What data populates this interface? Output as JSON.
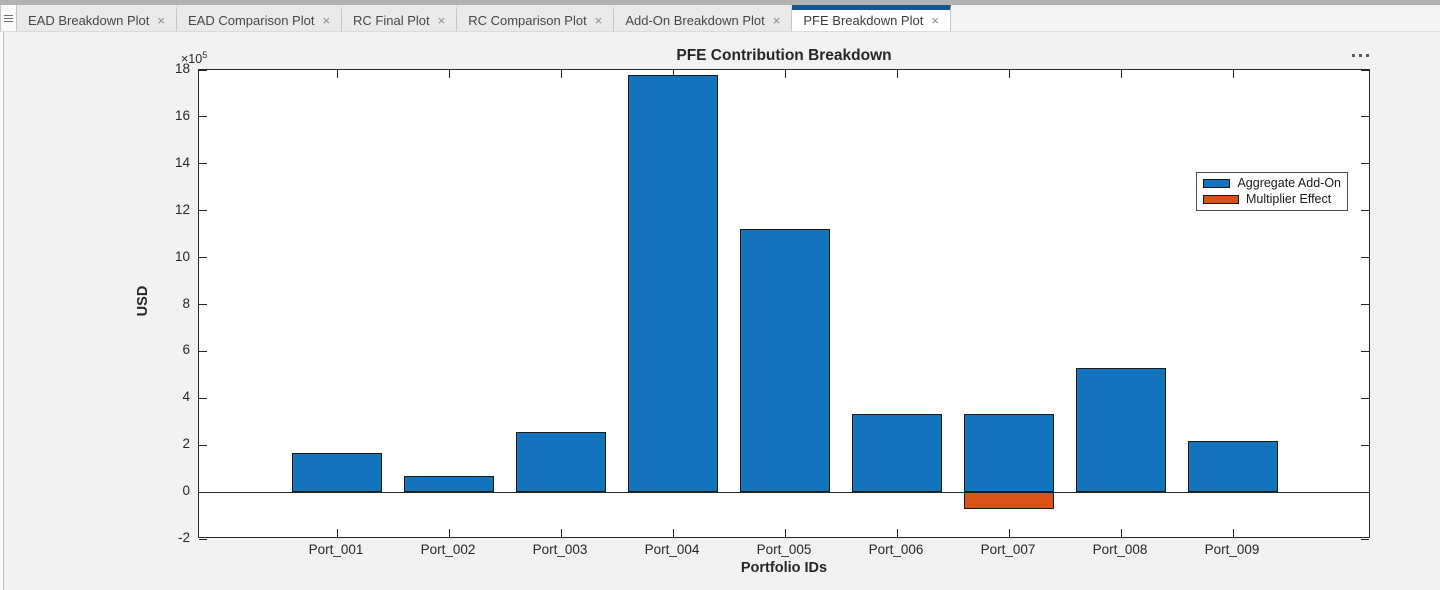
{
  "tab_bar": {
    "close_glyph": "×",
    "tabs": [
      {
        "label": "EAD Breakdown Plot",
        "active": false
      },
      {
        "label": "EAD Comparison Plot",
        "active": false
      },
      {
        "label": "RC Final Plot",
        "active": false
      },
      {
        "label": "RC Comparison Plot",
        "active": false
      },
      {
        "label": "Add-On Breakdown Plot",
        "active": false
      },
      {
        "label": "PFE Breakdown Plot",
        "active": true
      }
    ]
  },
  "figure": {
    "active_tab_accent_color": "#15578f",
    "background_color": "#f2f2f2"
  },
  "chart_data": {
    "type": "bar",
    "title": "PFE Contribution Breakdown",
    "xlabel": "Portfolio IDs",
    "ylabel": "USD",
    "y_scale_label_base": "×10",
    "y_scale_label_exponent": "5",
    "y_unit_multiplier": 100000,
    "categories": [
      "Port_001",
      "Port_002",
      "Port_003",
      "Port_004",
      "Port_005",
      "Port_006",
      "Port_007",
      "Port_008",
      "Port_009"
    ],
    "series": [
      {
        "name": "Aggregate Add-On",
        "color": "#1373BC",
        "values": [
          1.65,
          0.7,
          2.55,
          17.8,
          11.2,
          3.35,
          3.35,
          5.3,
          2.2
        ]
      },
      {
        "name": "Multiplier Effect",
        "color": "#D95319",
        "values": [
          0,
          0,
          0,
          0,
          0,
          0,
          -0.7,
          0,
          0
        ]
      }
    ],
    "ylim": [
      -2,
      18
    ],
    "ytick_step": 2,
    "grid": false,
    "axis_color": "#262626",
    "bar_edge_color": "#1a1a1a",
    "legend_position": "northeast"
  }
}
